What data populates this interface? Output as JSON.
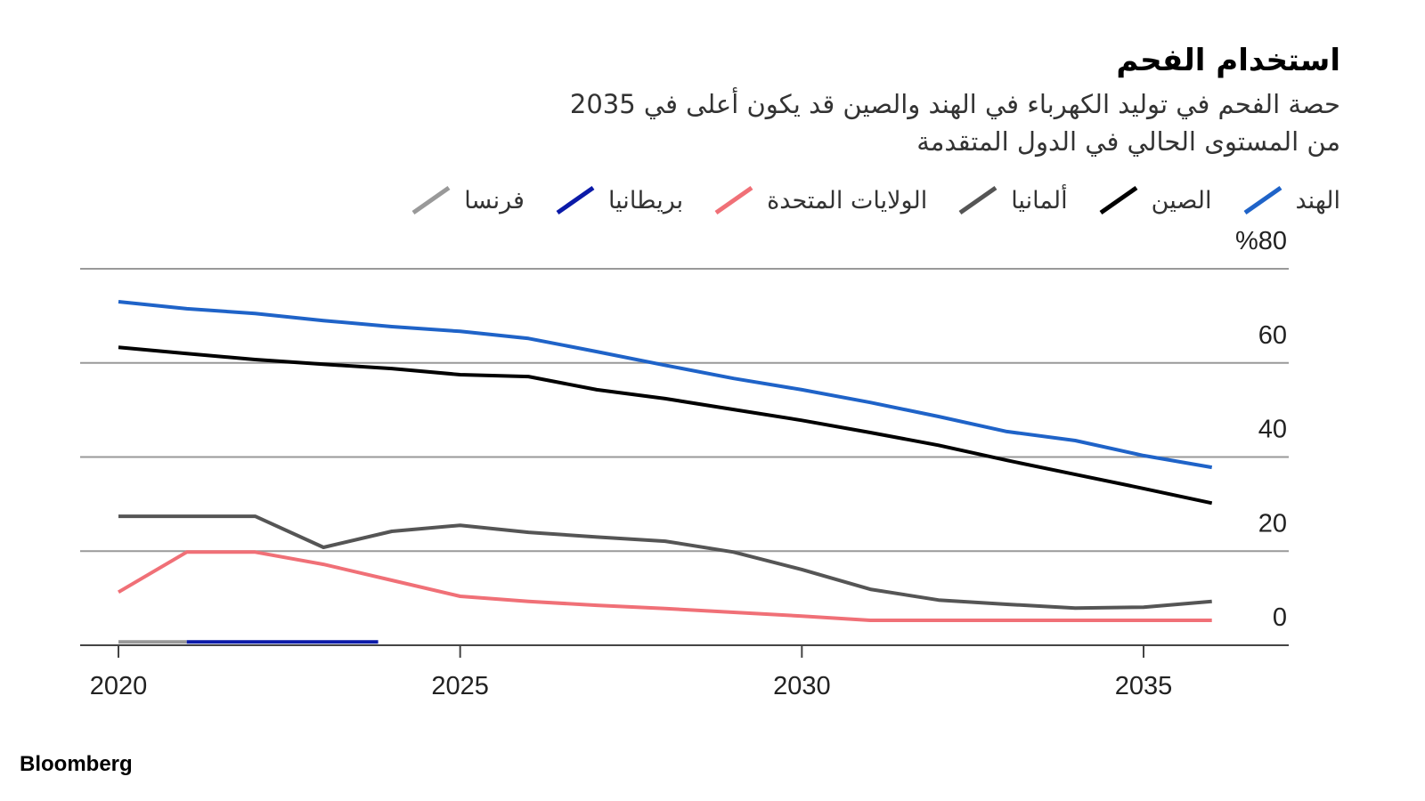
{
  "chart_data": {
    "type": "line",
    "title": "استخدام الفحم",
    "subtitle": [
      "حصة الفحم في توليد الكهرباء في الهند والصين قد يكون أعلى في 2035",
      "من المستوى الحالي في الدول المتقدمة"
    ],
    "source": "Bloomberg",
    "xlim": [
      2019.5,
      2037.9
    ],
    "xticks": [
      2020,
      2025,
      2030,
      2035
    ],
    "ylim": [
      0,
      80
    ],
    "yticks": [
      0,
      20,
      40,
      60,
      {
        "value": 80,
        "label": "%80"
      }
    ],
    "grid": true,
    "series": [
      {
        "name": "الهند",
        "color": "#1f63c8",
        "x": [
          2020,
          2021,
          2022,
          2023,
          2024,
          2025,
          2026,
          2027,
          2028,
          2029,
          2030,
          2031,
          2032,
          2033,
          2034,
          2035,
          2036
        ],
        "values": [
          73,
          71.5,
          70.5,
          69,
          67.7,
          66.7,
          65.2,
          62.4,
          59.5,
          56.7,
          54.3,
          51.6,
          48.6,
          45.4,
          43.5,
          40.3,
          37.8
        ]
      },
      {
        "name": "الصين",
        "color": "#000000",
        "x": [
          2020,
          2021,
          2022,
          2023,
          2024,
          2025,
          2026,
          2027,
          2028,
          2029,
          2030,
          2031,
          2032,
          2033,
          2034,
          2035,
          2036
        ],
        "values": [
          63.3,
          62,
          60.7,
          59.7,
          58.8,
          57.5,
          57.1,
          54.3,
          52.4,
          50.1,
          47.8,
          45.2,
          42.5,
          39.3,
          36.3,
          33.3,
          30.2
        ]
      },
      {
        "name": "ألمانيا",
        "color": "#555555",
        "x": [
          2020,
          2021,
          2022,
          2023,
          2024,
          2025,
          2026,
          2027,
          2028,
          2029,
          2030,
          2031,
          2032,
          2033,
          2034,
          2035,
          2036
        ],
        "values": [
          27.4,
          27.4,
          27.4,
          20.8,
          24.2,
          25.5,
          24,
          23,
          22.1,
          19.8,
          16.1,
          11.9,
          9.6,
          8.7,
          7.9,
          8.1,
          9.3
        ]
      },
      {
        "name": "الولايات المتحدة",
        "color": "#f07077",
        "x": [
          2020,
          2021,
          2022,
          2023,
          2024,
          2025,
          2026,
          2027,
          2028,
          2029,
          2030,
          2031,
          2032,
          2033,
          2034,
          2035,
          2036
        ],
        "values": [
          11.3,
          19.8,
          19.8,
          17.2,
          13.8,
          10.4,
          9.3,
          8.5,
          7.8,
          7,
          6.2,
          5.3,
          5.3,
          5.3,
          5.3,
          5.3,
          5.3
        ]
      },
      {
        "name": "بريطانيا",
        "color": "#0b1aa8",
        "x": [
          2021,
          2022,
          2023,
          2023.8
        ],
        "values": [
          0.7,
          0.7,
          0.7,
          0.7
        ]
      },
      {
        "name": "فرنسا",
        "color": "#999999",
        "x": [
          2020,
          2021
        ],
        "values": [
          0.7,
          0.7
        ]
      }
    ]
  }
}
